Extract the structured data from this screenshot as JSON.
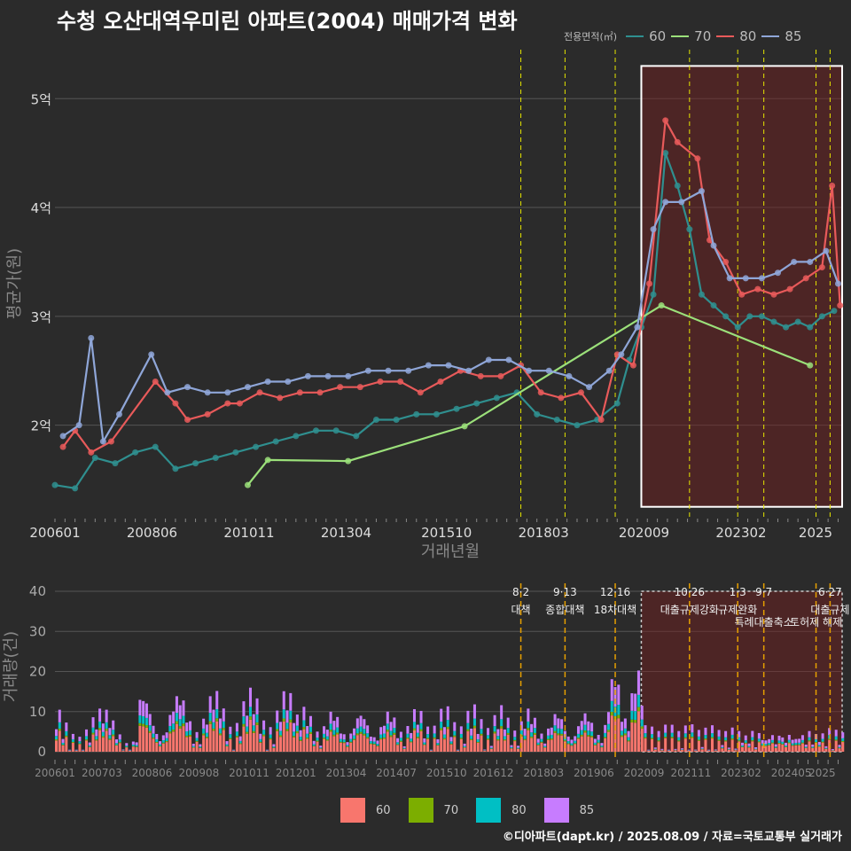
{
  "title": "수청 오산대역우미린 아파트(2004) 매매가격 변화",
  "caption": "©디아파트(dapt.kr) / 2025.08.09 / 자료=국토교통부 실거래가",
  "legend": {
    "title": "전용면적(㎡)",
    "items": [
      {
        "label": "60",
        "line_color": "#2f8f8f",
        "bar_color": "#f8766d"
      },
      {
        "label": "70",
        "line_color": "#9be07a",
        "bar_color": "#7cae00"
      },
      {
        "label": "80",
        "line_color": "#e85a5a",
        "bar_color": "#00bfc4"
      },
      {
        "label": "85",
        "line_color": "#8fa6d8",
        "bar_color": "#c77cff"
      }
    ]
  },
  "chart_data": [
    {
      "type": "line",
      "title": "수청 오산대역우미린 아파트(2004) 매매가격 변화",
      "xlabel": "거래년월",
      "ylabel": "평균가(원)",
      "x_ticks": [
        "200601",
        "200806",
        "201011",
        "201304",
        "201510",
        "201803",
        "202009",
        "202302",
        "2025"
      ],
      "y_ticks": [
        {
          "value": 2,
          "label": "2억"
        },
        {
          "value": 3,
          "label": "3억"
        },
        {
          "value": 4,
          "label": "4억"
        },
        {
          "value": 5,
          "label": "5억"
        }
      ],
      "xlim": [
        2006.0,
        2025.6
      ],
      "ylim": [
        1.15,
        5.45
      ],
      "policy_lines": [
        2017.6,
        2018.7,
        2019.95,
        2021.8,
        2023.0,
        2023.65,
        2024.95,
        2025.3
      ],
      "highlight": {
        "x0": 2020.6,
        "x1": 2025.6,
        "y0": 1.25,
        "y1": 5.3
      },
      "series": [
        {
          "name": "60",
          "x": [
            2006.0,
            2006.5,
            2007.0,
            2007.5,
            2008.0,
            2008.5,
            2009.0,
            2009.5,
            2010.0,
            2010.5,
            2011.0,
            2011.5,
            2012.0,
            2012.5,
            2013.0,
            2013.5,
            2014.0,
            2014.5,
            2015.0,
            2015.5,
            2016.0,
            2016.5,
            2017.0,
            2017.5,
            2018.0,
            2018.5,
            2019.0,
            2019.5,
            2020.0,
            2020.3,
            2020.6,
            2020.9,
            2021.2,
            2021.5,
            2021.8,
            2022.1,
            2022.4,
            2022.7,
            2023.0,
            2023.3,
            2023.6,
            2023.9,
            2024.2,
            2024.5,
            2024.8,
            2025.1,
            2025.4
          ],
          "values": [
            1.45,
            1.42,
            1.7,
            1.65,
            1.75,
            1.8,
            1.6,
            1.65,
            1.7,
            1.75,
            1.8,
            1.85,
            1.9,
            1.95,
            1.95,
            1.9,
            2.05,
            2.05,
            2.1,
            2.1,
            2.15,
            2.2,
            2.25,
            2.3,
            2.1,
            2.05,
            2.0,
            2.05,
            2.2,
            2.6,
            2.9,
            3.2,
            4.5,
            4.2,
            3.8,
            3.2,
            3.1,
            3.0,
            2.9,
            3.0,
            3.0,
            2.95,
            2.9,
            2.95,
            2.9,
            3.0,
            3.05
          ]
        },
        {
          "name": "70",
          "x": [
            2010.8,
            2011.3,
            2013.3,
            2016.2,
            2021.1,
            2024.8
          ],
          "values": [
            1.45,
            1.68,
            1.67,
            1.99,
            3.1,
            2.55
          ]
        },
        {
          "name": "80",
          "x": [
            2006.2,
            2006.5,
            2006.9,
            2007.4,
            2008.5,
            2009.0,
            2009.3,
            2009.8,
            2010.3,
            2010.6,
            2011.1,
            2011.6,
            2012.1,
            2012.6,
            2013.1,
            2013.6,
            2014.1,
            2014.6,
            2015.1,
            2015.6,
            2016.1,
            2016.6,
            2017.1,
            2017.6,
            2018.1,
            2018.6,
            2019.1,
            2019.6,
            2020.0,
            2020.4,
            2020.8,
            2021.2,
            2021.5,
            2022.0,
            2022.3,
            2022.7,
            2023.1,
            2023.5,
            2023.9,
            2024.3,
            2024.7,
            2025.1,
            2025.35,
            2025.55
          ],
          "values": [
            1.8,
            1.95,
            1.75,
            1.85,
            2.4,
            2.2,
            2.05,
            2.1,
            2.2,
            2.2,
            2.3,
            2.25,
            2.3,
            2.3,
            2.35,
            2.35,
            2.4,
            2.4,
            2.3,
            2.4,
            2.5,
            2.45,
            2.45,
            2.55,
            2.3,
            2.25,
            2.3,
            2.05,
            2.65,
            2.55,
            3.3,
            4.8,
            4.6,
            4.45,
            3.7,
            3.5,
            3.2,
            3.25,
            3.2,
            3.25,
            3.35,
            3.45,
            4.2,
            3.1
          ]
        },
        {
          "name": "85",
          "x": [
            2006.2,
            2006.6,
            2006.9,
            2007.2,
            2007.6,
            2008.4,
            2008.8,
            2009.3,
            2009.8,
            2010.3,
            2010.8,
            2011.3,
            2011.8,
            2012.3,
            2012.8,
            2013.3,
            2013.8,
            2014.3,
            2014.8,
            2015.3,
            2015.8,
            2016.3,
            2016.8,
            2017.3,
            2017.8,
            2018.3,
            2018.8,
            2019.3,
            2019.8,
            2020.1,
            2020.5,
            2020.9,
            2021.2,
            2021.6,
            2022.1,
            2022.4,
            2022.8,
            2023.2,
            2023.6,
            2024.0,
            2024.4,
            2024.8,
            2025.2,
            2025.5
          ],
          "values": [
            1.9,
            2.0,
            2.8,
            1.85,
            2.1,
            2.65,
            2.3,
            2.35,
            2.3,
            2.3,
            2.35,
            2.4,
            2.4,
            2.45,
            2.45,
            2.45,
            2.5,
            2.5,
            2.5,
            2.55,
            2.55,
            2.5,
            2.6,
            2.6,
            2.5,
            2.5,
            2.45,
            2.35,
            2.5,
            2.65,
            2.9,
            3.8,
            4.05,
            4.05,
            4.15,
            3.65,
            3.35,
            3.35,
            3.35,
            3.4,
            3.5,
            3.5,
            3.6,
            3.3
          ]
        }
      ]
    },
    {
      "type": "bar",
      "xlabel": "",
      "ylabel": "거래량(건)",
      "x_ticks": [
        "200601",
        "200703",
        "200806",
        "200908",
        "201011",
        "201201",
        "201304",
        "201407",
        "201510",
        "201612",
        "201803",
        "201906",
        "202009",
        "202111",
        "202302",
        "202405",
        "2025"
      ],
      "y_ticks": [
        0,
        10,
        20,
        30,
        40
      ],
      "ylim": [
        0,
        42
      ],
      "highlight": {
        "x0": 2020.6,
        "x1": 2025.6,
        "y0": 0,
        "y1": 40
      },
      "series_names": [
        "60",
        "70",
        "80",
        "85"
      ],
      "annotations": [
        {
          "x": 2017.6,
          "date": "8·2",
          "label": "대책"
        },
        {
          "x": 2018.7,
          "date": "9·13",
          "label": "종합대책"
        },
        {
          "x": 2019.95,
          "date": "12·16",
          "label": "18차대책"
        },
        {
          "x": 2021.8,
          "date": "10·26",
          "label": "대출규제강화"
        },
        {
          "x": 2023.0,
          "date": "1·3",
          "label": "규제완화"
        },
        {
          "x": 2023.65,
          "date": "9·7",
          "label": "특례대출축소"
        },
        {
          "x": 2024.95,
          "date": "",
          "label": "토허제 해제"
        },
        {
          "x": 2025.3,
          "date": "6·27",
          "label": "대출규제"
        }
      ]
    }
  ]
}
